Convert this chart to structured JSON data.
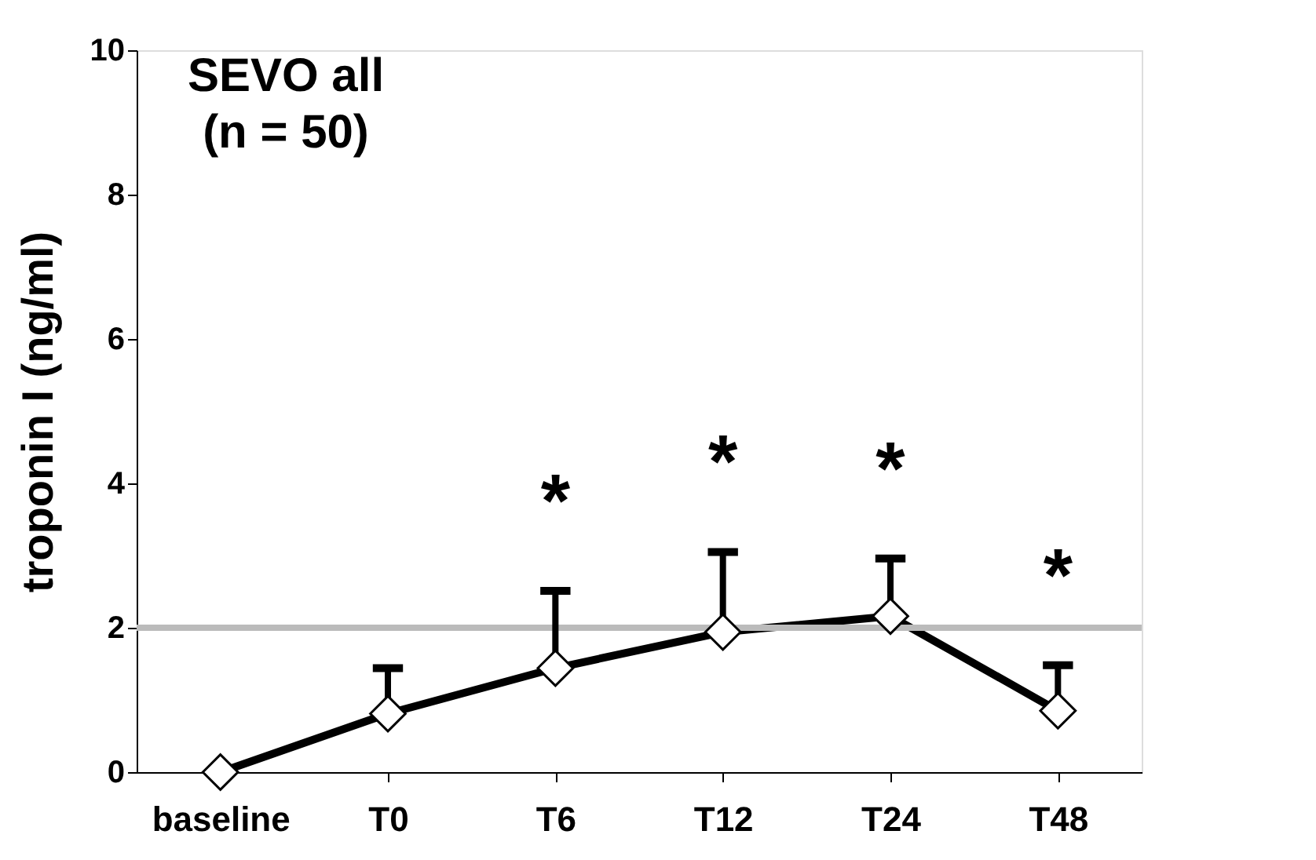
{
  "chart_data": {
    "type": "line",
    "title": "SEVO all\n(n = 50)",
    "ylabel": "troponin I (ng/ml)",
    "categories": [
      "baseline",
      "T0",
      "T6",
      "T12",
      "T24",
      "T48"
    ],
    "series": [
      {
        "color": "#000000",
        "values": [
          0,
          0.81,
          1.44,
          1.94,
          2.16,
          0.85
        ],
        "errors": [
          null,
          [
            0.81,
            1.44
          ],
          [
            1.44,
            2.51
          ],
          [
            1.94,
            3.05
          ],
          [
            2.16,
            2.96
          ],
          [
            0.85,
            1.48
          ]
        ]
      }
    ],
    "ylim": [
      0,
      10
    ],
    "yticks": [
      0,
      2,
      4,
      6,
      8,
      10
    ],
    "grid": false,
    "marker": "diamond",
    "line_style": "solid",
    "ref_lines": [
      {
        "axis": "y",
        "value": 2,
        "color": "#bbbbbb"
      }
    ],
    "annotations": [
      "*",
      "*",
      "*",
      "*"
    ]
  }
}
